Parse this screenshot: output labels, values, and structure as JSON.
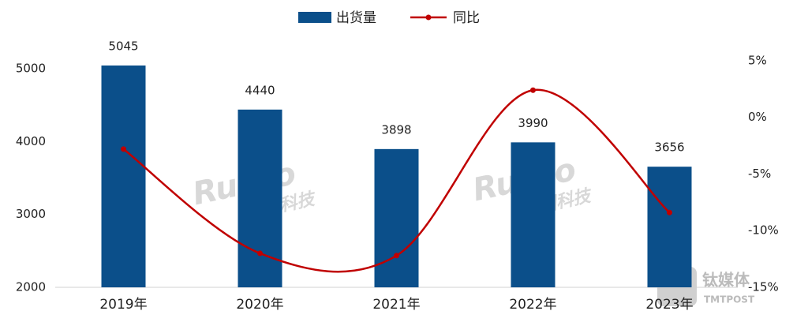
{
  "chart_data": {
    "type": "bar-line",
    "categories": [
      "2019年",
      "2020年",
      "2021年",
      "2022年",
      "2023年"
    ],
    "series": [
      {
        "name": "出货量",
        "type": "bar",
        "color": "#0b4f8a",
        "values": [
          5045,
          4440,
          3898,
          3990,
          3656
        ]
      },
      {
        "name": "同比",
        "type": "line",
        "axis": "y2",
        "color": "#c00000",
        "values": [
          -2.8,
          -12.0,
          -12.2,
          2.4,
          -8.4
        ]
      }
    ],
    "ylim": [
      2000,
      5500
    ],
    "yticks": [
      2000,
      3000,
      4000,
      5000
    ],
    "y2lim": [
      -15,
      7.5
    ],
    "y2ticks": [
      {
        "value": -15,
        "label": "-15%"
      },
      {
        "value": -10,
        "label": "-10%"
      },
      {
        "value": -5,
        "label": "-5%"
      },
      {
        "value": 0,
        "label": "0%"
      },
      {
        "value": 5,
        "label": "5%"
      }
    ],
    "data_labels": true,
    "smooth": true,
    "watermarks": [
      "Runto",
      "洛图科技",
      "钛媒体",
      "TMTPOST"
    ]
  }
}
